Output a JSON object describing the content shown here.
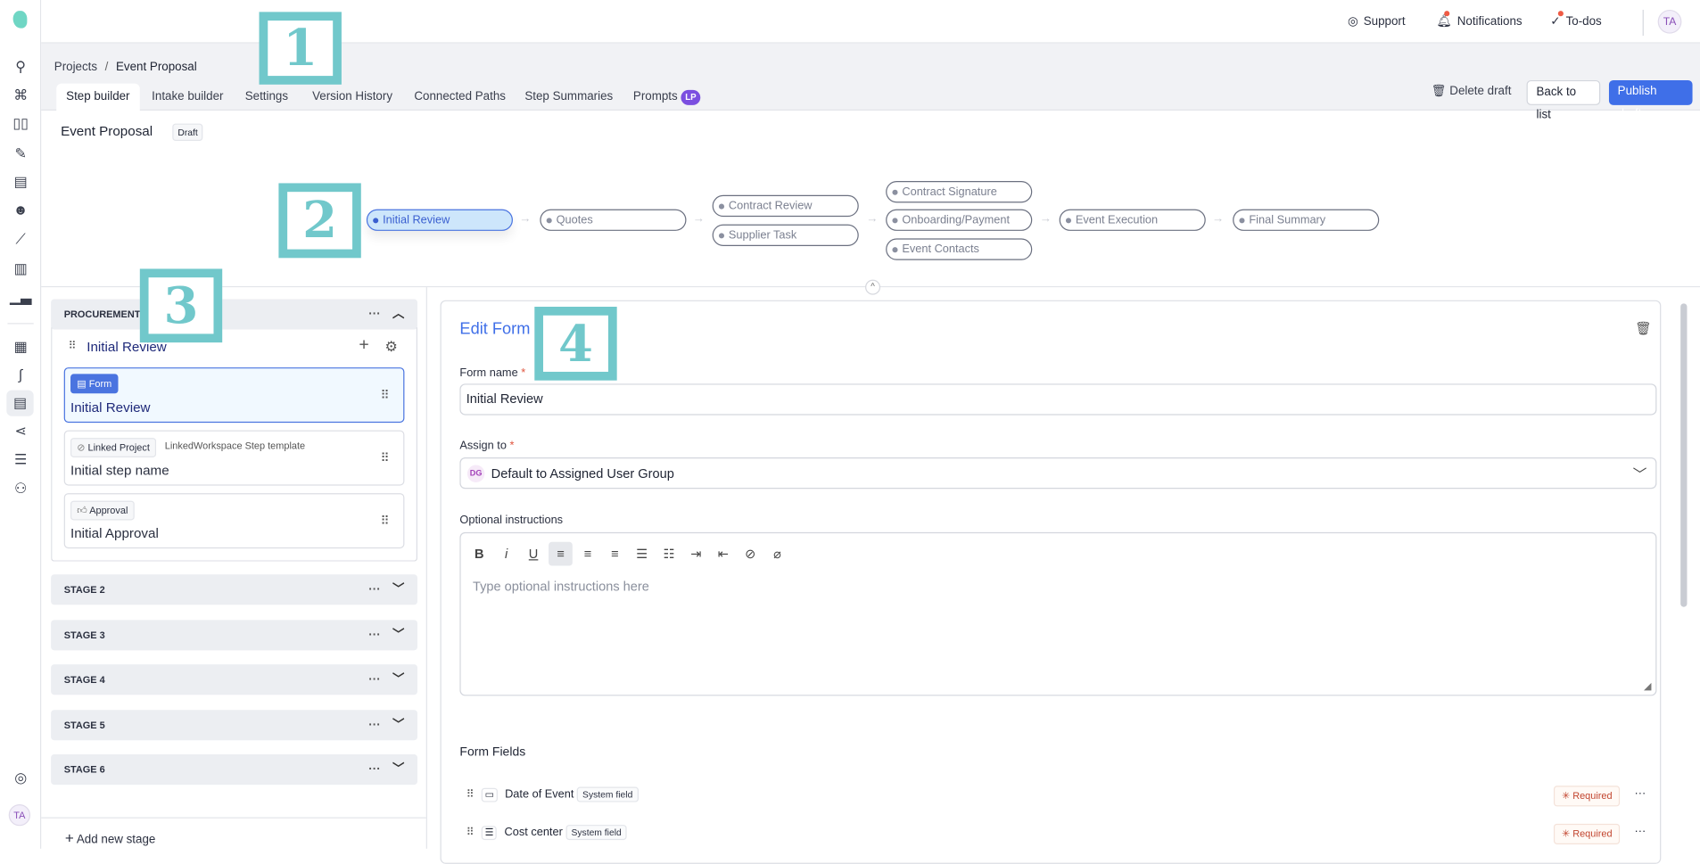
{
  "rail": {
    "items": [
      "signpost-icon",
      "network-icon",
      "columns-icon",
      "sign-icon",
      "document-icon",
      "robot-icon",
      "line-chart-icon",
      "buildings-icon",
      "bar-chart-icon",
      "building-chart-icon",
      "route-icon",
      "form-icon",
      "branch-icon",
      "table-icon",
      "user-icon"
    ],
    "avatar": "TA"
  },
  "topbar": {
    "support": "Support",
    "notifications": "Notifications",
    "todos": "To-dos",
    "avatar": "TA"
  },
  "breadcrumb": {
    "root": "Projects",
    "separator": "/",
    "current": "Event Proposal"
  },
  "tabs": [
    {
      "label": "Step builder"
    },
    {
      "label": "Intake builder"
    },
    {
      "label": "Settings"
    },
    {
      "label": "Version History"
    },
    {
      "label": "Connected Paths"
    },
    {
      "label": "Step Summaries"
    },
    {
      "label": "Prompts",
      "badge": "LP"
    }
  ],
  "actions": {
    "delete": "Delete draft",
    "back": "Back to list",
    "publish": "Publish draft"
  },
  "project": {
    "title": "Event Proposal",
    "status": "Draft"
  },
  "pipeline": [
    "Initial Review",
    "Quotes",
    "Contract Review",
    "Supplier Task",
    "Contract Signature",
    "Onboarding/Payment",
    "Event Contacts",
    "Event Execution",
    "Final Summary"
  ],
  "annotations": [
    "1",
    "2",
    "3",
    "4"
  ],
  "stages": {
    "procurement": {
      "name": "PROCUREMENT",
      "step": "Initial Review",
      "cards": [
        {
          "chip": "Form",
          "title": "Initial Review"
        },
        {
          "chip": "Linked Project",
          "extra": "LinkedWorkspace Step template",
          "title": "Initial step name"
        },
        {
          "chip": "Approval",
          "title": "Initial Approval"
        }
      ]
    },
    "others": [
      "STAGE 2",
      "STAGE 3",
      "STAGE 4",
      "STAGE 5",
      "STAGE 6"
    ],
    "add": "Add new stage"
  },
  "form": {
    "heading": "Edit Form",
    "name_label": "Form name",
    "name_value": "Initial Review",
    "assign_label": "Assign to",
    "assign_initials": "DG",
    "assign_value": "Default to Assigned User Group",
    "instr_label": "Optional instructions",
    "instr_placeholder": "Type optional instructions here",
    "fields_heading": "Form Fields",
    "fields": [
      {
        "name": "Date of Event",
        "tag": "System field",
        "required": "Required"
      },
      {
        "name": "Cost center",
        "tag": "System field",
        "required": "Required"
      }
    ]
  },
  "colors": {
    "accent": "#3f6fe8",
    "annotation": "#71c8cb",
    "required": "#c2452f"
  }
}
